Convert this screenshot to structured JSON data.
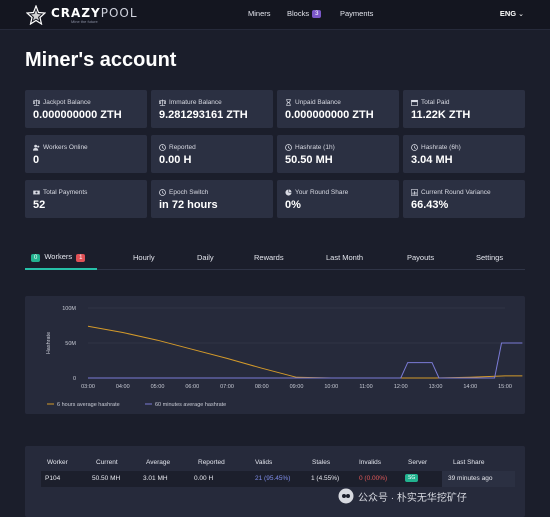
{
  "nav": {
    "brand": {
      "name_a": "CRAZY",
      "name_b": "POOL",
      "tagline": "Mine the future"
    },
    "items": [
      {
        "label": "Miners"
      },
      {
        "label": "Blocks",
        "badge": "3"
      },
      {
        "label": "Payments"
      }
    ],
    "language": "ENG"
  },
  "page_title": "Miner's account",
  "stats": [
    {
      "label": "Jackpot Balance",
      "value": "0.000000000 ZTH",
      "icon": "scale-icon"
    },
    {
      "label": "Immature Balance",
      "value": "9.281293161 ZTH",
      "icon": "scale-icon"
    },
    {
      "label": "Unpaid Balance",
      "value": "0.000000000 ZTH",
      "icon": "hourglass-icon"
    },
    {
      "label": "Total Paid",
      "value": "11.22K ZTH",
      "icon": "calendar-icon"
    },
    {
      "label": "Workers Online",
      "value": "0",
      "icon": "users-icon"
    },
    {
      "label": "Reported",
      "value": "0.00 H",
      "icon": "clock-icon"
    },
    {
      "label": "Hashrate (1h)",
      "value": "50.50 MH",
      "icon": "clock-icon"
    },
    {
      "label": "Hashrate (6h)",
      "value": "3.04 MH",
      "icon": "clock-icon"
    },
    {
      "label": "Total Payments",
      "value": "52",
      "icon": "money-icon"
    },
    {
      "label": "Epoch Switch",
      "value": "in 72 hours",
      "icon": "clock-icon"
    },
    {
      "label": "Your Round Share",
      "value": "0%",
      "icon": "pie-icon"
    },
    {
      "label": "Current Round Variance",
      "value": "66.43%",
      "icon": "bars-icon"
    }
  ],
  "tabs": [
    {
      "label": "Workers",
      "online": "0",
      "offline": "1"
    },
    {
      "label": "Hourly"
    },
    {
      "label": "Daily"
    },
    {
      "label": "Rewards"
    },
    {
      "label": "Last Month"
    },
    {
      "label": "Payouts"
    },
    {
      "label": "Settings"
    }
  ],
  "chart_data": {
    "type": "line",
    "ylabel": "Hashrate",
    "ytick_labels": [
      "0",
      "50M",
      "100M"
    ],
    "ylim": [
      0,
      100
    ],
    "x": [
      "03:00",
      "04:00",
      "05:00",
      "06:00",
      "07:00",
      "08:00",
      "09:00",
      "10:00",
      "11:00",
      "12:00",
      "13:00",
      "14:00",
      "15:00"
    ],
    "series": [
      {
        "name": "6 hours average hashrate",
        "color": "#d49a2a",
        "points": [
          [
            0,
            74
          ],
          [
            1,
            65
          ],
          [
            2,
            54
          ],
          [
            3,
            41
          ],
          [
            4,
            28
          ],
          [
            5,
            14
          ],
          [
            6,
            1
          ],
          [
            7,
            0
          ],
          [
            8,
            0
          ],
          [
            9,
            0
          ],
          [
            10,
            0
          ],
          [
            11,
            1
          ],
          [
            12,
            3
          ],
          [
            12.5,
            3
          ]
        ]
      },
      {
        "name": "60 minutes average hashrate",
        "color": "#7b7bd6",
        "points": [
          [
            0,
            0
          ],
          [
            9,
            0
          ],
          [
            9.2,
            22
          ],
          [
            9.9,
            22
          ],
          [
            10.1,
            0
          ],
          [
            11.7,
            0
          ],
          [
            11.9,
            50
          ],
          [
            12.5,
            50
          ]
        ]
      }
    ]
  },
  "table": {
    "headers": [
      "Worker",
      "Current",
      "Average",
      "Reported",
      "Valids",
      "Stales",
      "Invalids",
      "Server",
      "Last Share"
    ],
    "rows": [
      {
        "worker": "P104",
        "current": "50.50 MH",
        "average": "3.01 MH",
        "reported": "0.00 H",
        "valids": "21 (95.45%)",
        "stales": "1 (4.55%)",
        "invalids": "0 (0.00%)",
        "server": "SG",
        "last_share": "39 minutes ago"
      }
    ]
  },
  "watermark": "公众号 · 朴实无华挖矿仔"
}
